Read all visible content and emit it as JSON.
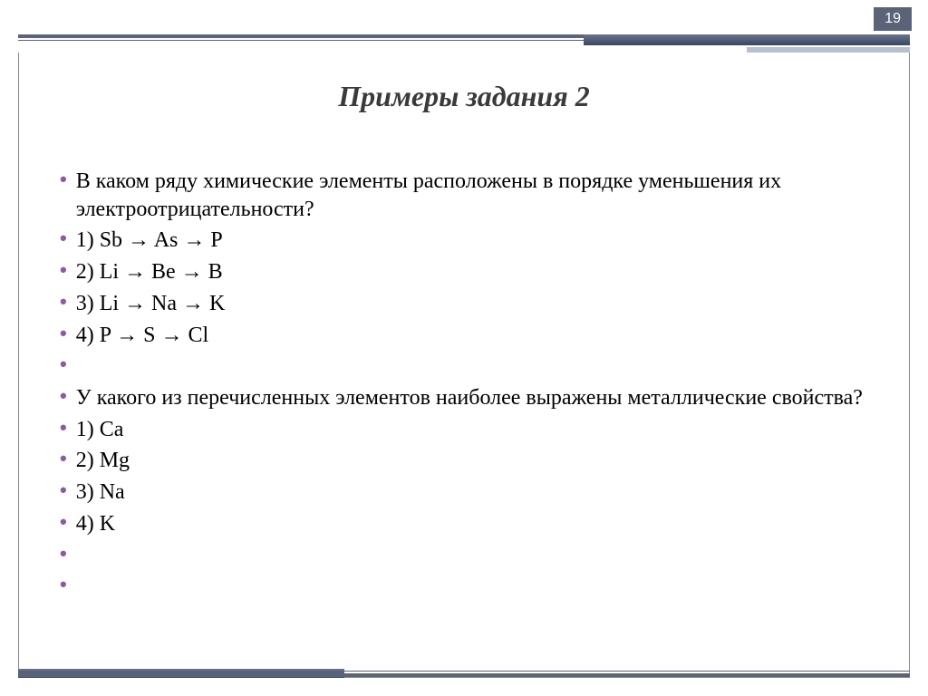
{
  "page_number": "19",
  "title": "Примеры задания 2",
  "bullets": [
    "В каком ряду химические элементы расположены в порядке уменьшения их электроотрицательности?",
    "1)  Sb → As → P",
    "2)  Li → Be → B",
    "3)  Li → Na → K",
    "4)  P → S → Cl",
    "",
    "У какого из перечисленных элементов наиболее выражены металлические свойства?",
    " 1)  Ca",
    " 2) Mg",
    " 3)  Na",
    " 4)  K",
    "",
    ""
  ],
  "colors": {
    "bullet": "#8a5aa8",
    "text": "#000000",
    "title": "#3a3a3a",
    "header_bar": "#5a6378",
    "page_num_bg": "#5a6378"
  }
}
